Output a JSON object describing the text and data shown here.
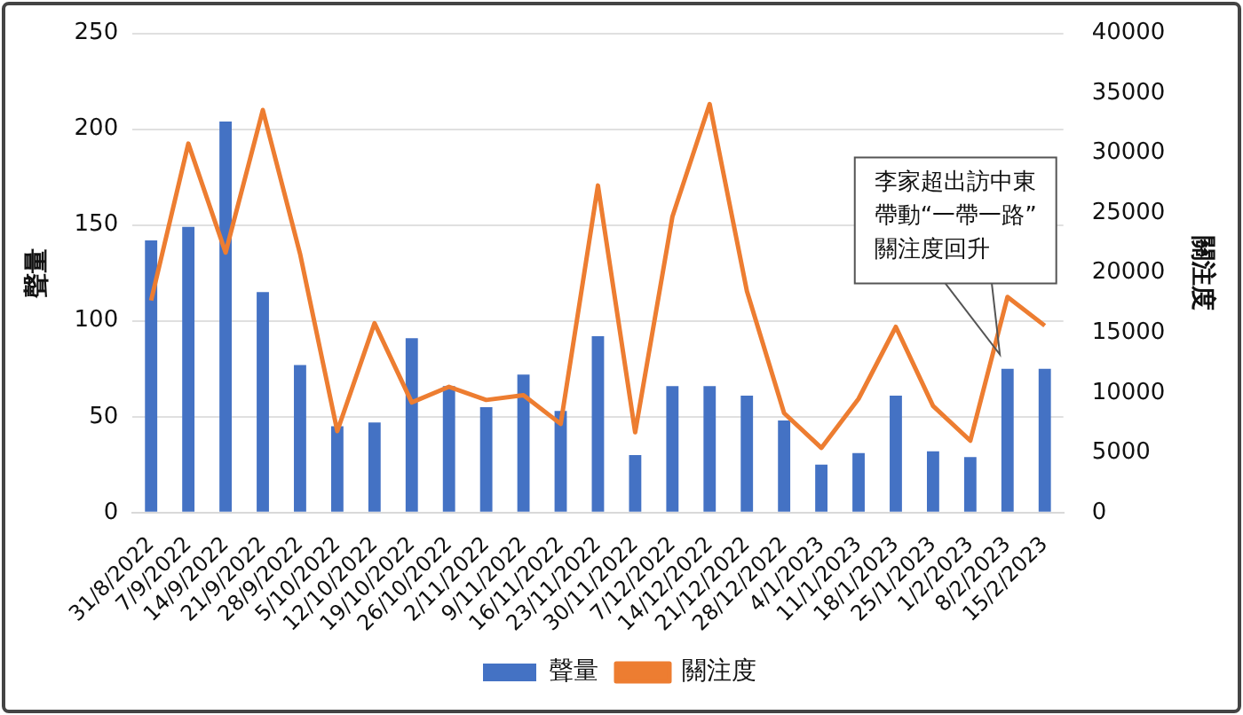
{
  "chart_data": {
    "type": "bar",
    "categories": [
      "31/8/2022",
      "7/9/2022",
      "14/9/2022",
      "21/9/2022",
      "28/9/2022",
      "5/10/2022",
      "12/10/2022",
      "19/10/2022",
      "26/10/2022",
      "2/11/2022",
      "9/11/2022",
      "16/11/2022",
      "23/11/2022",
      "30/11/2022",
      "7/12/2022",
      "14/12/2022",
      "21/12/2022",
      "28/12/2022",
      "4/1/2023",
      "11/1/2023",
      "18/1/2023",
      "25/1/2023",
      "1/2/2023",
      "8/2/2023",
      "15/2/2023"
    ],
    "series": [
      {
        "name": "聲量",
        "color": "#4472c4",
        "values": [
          142,
          149,
          204,
          115,
          77,
          45,
          47,
          91,
          66,
          55,
          72,
          53,
          92,
          30,
          66,
          66,
          61,
          48,
          25,
          31,
          61,
          32,
          29,
          75,
          75
        ]
      },
      {
        "name": "關注度",
        "type": "line",
        "axis": "y2",
        "color": "#ed7d31",
        "values": [
          17700,
          30800,
          21700,
          33600,
          21600,
          6800,
          15800,
          9200,
          10500,
          9400,
          9800,
          7400,
          27300,
          6700,
          24700,
          34100,
          18500,
          8300,
          5400,
          9500,
          15500,
          8900,
          6000,
          18000,
          15600
        ]
      }
    ],
    "ylabel": "聲量",
    "y2label": "關注度",
    "ylim": [
      0,
      250
    ],
    "yticks": [
      0,
      50,
      100,
      150,
      200,
      250
    ],
    "y2lim": [
      0,
      40000
    ],
    "y2ticks": [
      0,
      5000,
      10000,
      15000,
      20000,
      25000,
      30000,
      35000,
      40000
    ],
    "grid": "y",
    "legend": "bottom",
    "marker": "none",
    "line_style": "solid",
    "annotations": [
      "李家超出訪中東帶動“一帶一路”關注度回升"
    ]
  }
}
